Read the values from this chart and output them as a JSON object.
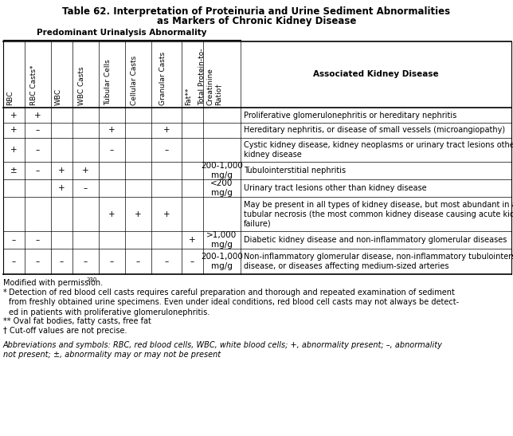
{
  "title_line1": "Table 62. Interpretation of Proteinuria and Urine Sediment Abnormalities",
  "title_line2": "as Markers of Chronic Kidney Disease",
  "group_header": "Predominant Urinalysis Abnormality",
  "col_headers": [
    "RBC",
    "RBC Casts*",
    "WBC",
    "WBC Casts",
    "Tubular Cells",
    "Cellular Casts",
    "Granular Casts",
    "Fat**",
    "Total Protein-to-\nCreatinine\nRatio†",
    "Associated Kidney Disease"
  ],
  "rows": [
    [
      "+",
      "+",
      "",
      "",
      "",
      "",
      "",
      "",
      "",
      "Proliferative glomerulonephritis or hereditary nephritis"
    ],
    [
      "+",
      "–",
      "",
      "",
      "+",
      "",
      "+",
      "",
      "",
      "Hereditary nephritis, or disease of small vessels (microangiopathy)"
    ],
    [
      "+",
      "–",
      "",
      "",
      "–",
      "",
      "–",
      "",
      "",
      "Cystic kidney disease, kidney neoplasms or urinary tract lesions other than\nkidney disease"
    ],
    [
      "±",
      "–",
      "+",
      "+",
      "",
      "",
      "",
      "",
      "200-1,000\nmg/g",
      "Tubulointerstitial nephritis"
    ],
    [
      "",
      "",
      "+",
      "–",
      "",
      "",
      "",
      "",
      "<200\nmg/g",
      "Urinary tract lesions other than kidney disease"
    ],
    [
      "",
      "",
      "",
      "",
      "+",
      "+",
      "+",
      "",
      "",
      "May be present in all types of kidney disease, but most abundant in acute\ntubular necrosis (the most common kidney disease causing acute kidney\nfailure)"
    ],
    [
      "–",
      "–",
      "",
      "",
      "",
      "",
      "",
      "+",
      ">1,000\nmg/g",
      "Diabetic kidney disease and non-inflammatory glomerular diseases"
    ],
    [
      "–",
      "–",
      "–",
      "–",
      "–",
      "–",
      "–",
      "–",
      "200-1,000\nmg/g",
      "Non-inflammatory glomerular disease, non-inflammatory tubulointerstitial\ndisease, or diseases affecting medium-sized arteries"
    ]
  ],
  "footnote0": "Modified with permission.",
  "footnote0_sup": "230",
  "footnote1_star": "*",
  "footnote1_body": "Detection of red blood cell casts requires careful preparation and thorough and repeated examination of sediment\nfrom freshly obtained urine specimens. Even under ideal conditions, red blood cell casts may not always be detect-\ned in patients with proliferative glomerulonephritis.",
  "footnote2": "** Oval fat bodies, fatty casts, free fat",
  "footnote3": "† Cut-off values are not precise.",
  "footnote4": "Abbreviations and symbols: RBC, red blood cells, WBC, white blood cells; +, abnormality present; –, abnormality\nnot present; ±, abnormality may or may not be present",
  "bg_color": "#ffffff",
  "text_color": "#000000",
  "line_color": "#000000"
}
